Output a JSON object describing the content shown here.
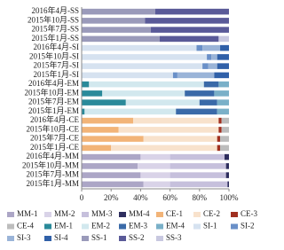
{
  "chart_data": {
    "type": "stacked-bar-horizontal",
    "categories": [
      "2016年4月-SS",
      "2015年10月-SS",
      "2015年7月-SS",
      "2015年1月-SS",
      "2016年4月-SI",
      "2015年10月-SI",
      "2015年7月-SI",
      "2015年1月-SI",
      "2016年4月-EM",
      "2015年10月-EM",
      "2015年7月-EM",
      "2015年1月-EM",
      "2016年4月-CE",
      "2015年10月-CE",
      "2015年7月-CE",
      "2015年1月-CE",
      "2016年4月-MM",
      "2015年10月-MM",
      "2015年7月-MM",
      "2015年1月-MM"
    ],
    "series": [
      {
        "name": "MM-1",
        "color": "#aca6c6",
        "values": [
          0,
          0,
          0,
          0,
          0,
          0,
          0,
          0,
          0,
          0,
          0,
          0,
          0,
          0,
          0,
          0,
          40,
          38,
          40,
          42
        ]
      },
      {
        "name": "MM-2",
        "color": "#d9d3e8",
        "values": [
          0,
          0,
          0,
          0,
          0,
          0,
          0,
          0,
          0,
          0,
          0,
          0,
          0,
          0,
          0,
          0,
          20,
          22,
          20,
          18
        ]
      },
      {
        "name": "MM-3",
        "color": "#c6c0dc",
        "values": [
          0,
          0,
          0,
          0,
          0,
          0,
          0,
          0,
          0,
          0,
          0,
          0,
          0,
          0,
          0,
          0,
          37,
          38,
          38,
          39
        ]
      },
      {
        "name": "MM-4",
        "color": "#2e2e5e",
        "values": [
          0,
          0,
          0,
          0,
          0,
          0,
          0,
          0,
          0,
          0,
          0,
          0,
          0,
          0,
          0,
          0,
          3,
          2,
          2,
          1
        ]
      },
      {
        "name": "CE-1",
        "color": "#f2b478",
        "values": [
          0,
          0,
          0,
          0,
          0,
          0,
          0,
          0,
          0,
          0,
          0,
          0,
          35,
          25,
          42,
          20,
          0,
          0,
          0,
          0
        ]
      },
      {
        "name": "CE-2",
        "color": "#f8e2cc",
        "values": [
          0,
          0,
          0,
          0,
          0,
          0,
          0,
          0,
          0,
          0,
          0,
          0,
          58,
          68,
          50,
          72,
          0,
          0,
          0,
          0
        ]
      },
      {
        "name": "CE-3",
        "color": "#a03020",
        "values": [
          0,
          0,
          0,
          0,
          0,
          0,
          0,
          0,
          0,
          0,
          0,
          0,
          2,
          2,
          2,
          2,
          0,
          0,
          0,
          0
        ]
      },
      {
        "name": "CE-4",
        "color": "#bdbdbd",
        "values": [
          0,
          0,
          0,
          0,
          0,
          0,
          0,
          0,
          0,
          0,
          0,
          0,
          5,
          5,
          6,
          6,
          0,
          0,
          0,
          0
        ]
      },
      {
        "name": "EM-1",
        "color": "#2a8a9a",
        "values": [
          0,
          0,
          0,
          0,
          0,
          0,
          0,
          0,
          5,
          14,
          30,
          2,
          0,
          0,
          0,
          0,
          0,
          0,
          0,
          0
        ]
      },
      {
        "name": "EM-2",
        "color": "#d2e8ee",
        "values": [
          0,
          0,
          0,
          0,
          0,
          0,
          0,
          0,
          78,
          56,
          50,
          62,
          0,
          0,
          0,
          0,
          0,
          0,
          0,
          0
        ]
      },
      {
        "name": "EM-3",
        "color": "#3a6aa8",
        "values": [
          0,
          0,
          0,
          0,
          0,
          0,
          0,
          0,
          10,
          20,
          12,
          28,
          0,
          0,
          0,
          0,
          0,
          0,
          0,
          0
        ]
      },
      {
        "name": "EM-4",
        "color": "#7ab0c8",
        "values": [
          0,
          0,
          0,
          0,
          0,
          0,
          0,
          0,
          7,
          10,
          8,
          8,
          0,
          0,
          0,
          0,
          0,
          0,
          0,
          0
        ]
      },
      {
        "name": "SI-1",
        "color": "#d6e2f0",
        "values": [
          0,
          0,
          0,
          0,
          78,
          85,
          82,
          62,
          0,
          0,
          0,
          0,
          0,
          0,
          0,
          0,
          0,
          0,
          0,
          0
        ]
      },
      {
        "name": "SI-2",
        "color": "#6a90c8",
        "values": [
          0,
          0,
          0,
          0,
          4,
          3,
          4,
          3,
          0,
          0,
          0,
          0,
          0,
          0,
          0,
          0,
          0,
          0,
          0,
          0
        ]
      },
      {
        "name": "SI-3",
        "color": "#9ab4d8",
        "values": [
          0,
          0,
          0,
          0,
          12,
          4,
          6,
          25,
          0,
          0,
          0,
          0,
          0,
          0,
          0,
          0,
          0,
          0,
          0,
          0
        ]
      },
      {
        "name": "SI-4",
        "color": "#3060a8",
        "values": [
          0,
          0,
          0,
          0,
          6,
          8,
          8,
          10,
          0,
          0,
          0,
          0,
          0,
          0,
          0,
          0,
          0,
          0,
          0,
          0
        ]
      },
      {
        "name": "SS-1",
        "color": "#9a9aba",
        "values": [
          50,
          43,
          47,
          53,
          0,
          0,
          0,
          0,
          0,
          0,
          0,
          0,
          0,
          0,
          0,
          0,
          0,
          0,
          0,
          0
        ]
      },
      {
        "name": "SS-2",
        "color": "#5a5a98",
        "values": [
          50,
          57,
          53,
          40,
          0,
          0,
          0,
          0,
          0,
          0,
          0,
          0,
          0,
          0,
          0,
          0,
          0,
          0,
          0,
          0
        ]
      },
      {
        "name": "SS-3",
        "color": "#c8c8e0",
        "values": [
          0,
          0,
          0,
          7,
          0,
          0,
          0,
          0,
          0,
          0,
          0,
          0,
          0,
          0,
          0,
          0,
          0,
          0,
          0,
          0
        ]
      }
    ],
    "xlim": [
      0,
      100
    ],
    "xticks": [
      0,
      {
        "value": 20,
        "label": "20%"
      },
      {
        "value": 40,
        "label": "40%"
      },
      {
        "value": 60,
        "label": "60%"
      },
      {
        "value": 80,
        "label": "80%"
      },
      {
        "value": 100,
        "label": "100%"
      }
    ]
  }
}
